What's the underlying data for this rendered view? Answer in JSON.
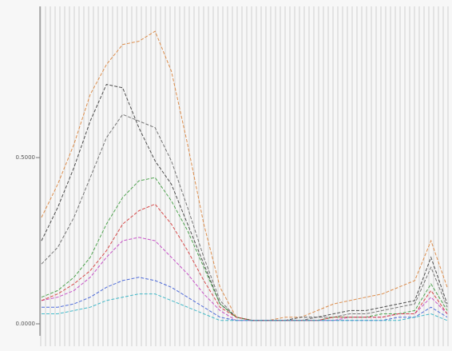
{
  "chart_data": {
    "type": "line",
    "categories": [
      null,
      null,
      null,
      null,
      null,
      null,
      null,
      null,
      null,
      null,
      null,
      null,
      null,
      null,
      null,
      null,
      null,
      null,
      null,
      null,
      null,
      null,
      null,
      null,
      null,
      null
    ],
    "ylim": [
      0,
      0.95
    ],
    "yticks": [
      {
        "value": 0,
        "label": "0.0000"
      },
      {
        "value": 0.5,
        "label": "0.5000"
      }
    ],
    "series": [
      {
        "color": "#d9823a",
        "values": [
          0.32,
          0.42,
          0.54,
          0.69,
          0.78,
          0.84,
          0.85,
          0.88,
          0.76,
          0.54,
          0.3,
          0.11,
          0.02,
          0.01,
          0.01,
          0.02,
          0.02,
          0.04,
          0.06,
          0.07,
          0.08,
          0.09,
          0.11,
          0.13,
          0.25,
          0.11
        ]
      },
      {
        "color": "#3a3a3a",
        "values": [
          0.25,
          0.35,
          0.47,
          0.61,
          0.72,
          0.71,
          0.59,
          0.49,
          0.42,
          0.3,
          0.18,
          0.06,
          0.02,
          0.01,
          0.01,
          0.01,
          0.02,
          0.02,
          0.03,
          0.04,
          0.04,
          0.05,
          0.06,
          0.07,
          0.2,
          0.06
        ]
      },
      {
        "color": "#666666",
        "values": [
          0.18,
          0.23,
          0.32,
          0.44,
          0.56,
          0.63,
          0.61,
          0.59,
          0.49,
          0.35,
          0.2,
          0.07,
          0.02,
          0.01,
          0.01,
          0.01,
          0.01,
          0.02,
          0.02,
          0.03,
          0.03,
          0.04,
          0.05,
          0.06,
          0.17,
          0.05
        ]
      },
      {
        "color": "#3c9a3c",
        "values": [
          0.08,
          0.1,
          0.14,
          0.2,
          0.3,
          0.38,
          0.43,
          0.44,
          0.37,
          0.28,
          0.17,
          0.06,
          0.02,
          0.01,
          0.01,
          0.01,
          0.01,
          0.01,
          0.02,
          0.02,
          0.02,
          0.03,
          0.03,
          0.04,
          0.12,
          0.04
        ]
      },
      {
        "color": "#c23fc2",
        "values": [
          0.07,
          0.08,
          0.1,
          0.14,
          0.2,
          0.25,
          0.26,
          0.25,
          0.2,
          0.15,
          0.09,
          0.04,
          0.01,
          0.01,
          0.01,
          0.01,
          0.01,
          0.01,
          0.01,
          0.02,
          0.02,
          0.02,
          0.03,
          0.03,
          0.08,
          0.03
        ]
      },
      {
        "color": "#3b5bd6",
        "values": [
          0.05,
          0.05,
          0.06,
          0.08,
          0.11,
          0.13,
          0.14,
          0.13,
          0.11,
          0.08,
          0.05,
          0.02,
          0.01,
          0.01,
          0.01,
          0.01,
          0.01,
          0.01,
          0.01,
          0.01,
          0.01,
          0.01,
          0.02,
          0.02,
          0.05,
          0.02
        ]
      },
      {
        "color": "#d43a3a",
        "values": [
          0.07,
          0.09,
          0.12,
          0.16,
          0.22,
          0.3,
          0.34,
          0.36,
          0.3,
          0.22,
          0.13,
          0.05,
          0.02,
          0.01,
          0.01,
          0.01,
          0.01,
          0.01,
          0.02,
          0.02,
          0.02,
          0.02,
          0.03,
          0.03,
          0.1,
          0.03
        ]
      },
      {
        "color": "#2fb3c4",
        "values": [
          0.03,
          0.03,
          0.04,
          0.05,
          0.07,
          0.08,
          0.09,
          0.09,
          0.07,
          0.05,
          0.03,
          0.01,
          0.01,
          0.01,
          0.01,
          0.01,
          0.01,
          0.01,
          0.01,
          0.01,
          0.01,
          0.01,
          0.01,
          0.02,
          0.03,
          0.01
        ]
      }
    ]
  }
}
